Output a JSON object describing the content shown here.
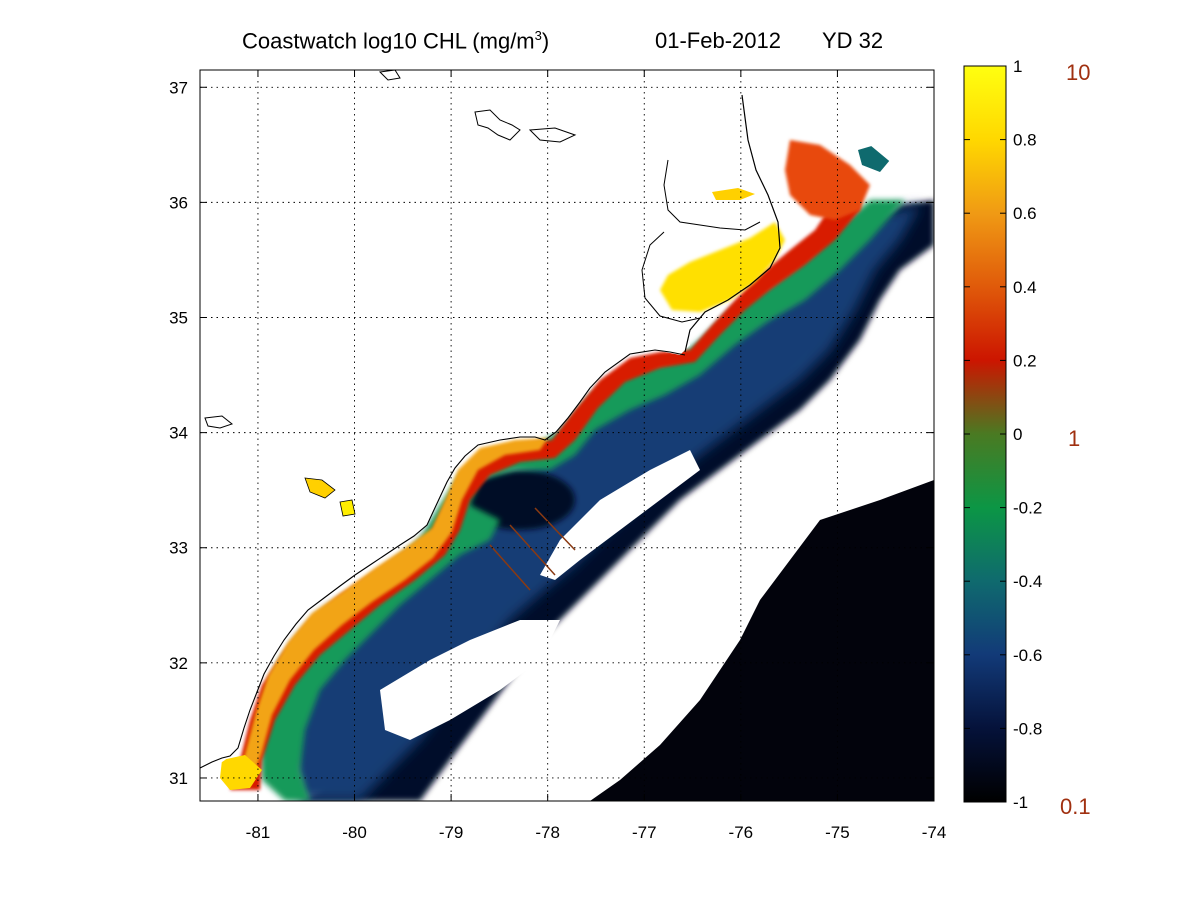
{
  "title": {
    "main": "Coastwatch  log10  CHL (mg/m",
    "unit_exponent": "3",
    "main_close": ")",
    "date": "01-Feb-2012",
    "yearday": "YD 32"
  },
  "map": {
    "lon_range": [
      -81.6,
      -74
    ],
    "lat_range": [
      30.8,
      37.15
    ],
    "lon_ticks": [
      "-81",
      "-80",
      "-79",
      "-78",
      "-77",
      "-76",
      "-75",
      "-74"
    ],
    "lat_ticks": [
      "37",
      "36",
      "35",
      "34",
      "33",
      "32",
      "31"
    ],
    "grid": "dotted",
    "land_color": "#ffffff",
    "coast_color": "#000000"
  },
  "colorbar": {
    "ticks": [
      "1",
      "0.8",
      "0.6",
      "0.4",
      "0.2",
      "0",
      "-0.2",
      "-0.4",
      "-0.6",
      "-0.8",
      "-1"
    ],
    "range": [
      -1,
      1
    ],
    "colors": [
      "#000000",
      "#05123a",
      "#123a78",
      "#0f6a6e",
      "#0c9645",
      "#4a7a22",
      "#cc1500",
      "#e05a0a",
      "#f09a14",
      "#ffd800",
      "#ffff10"
    ],
    "concentration_labels": [
      "10",
      "1",
      "0.1"
    ],
    "label_color": "#a03010"
  }
}
